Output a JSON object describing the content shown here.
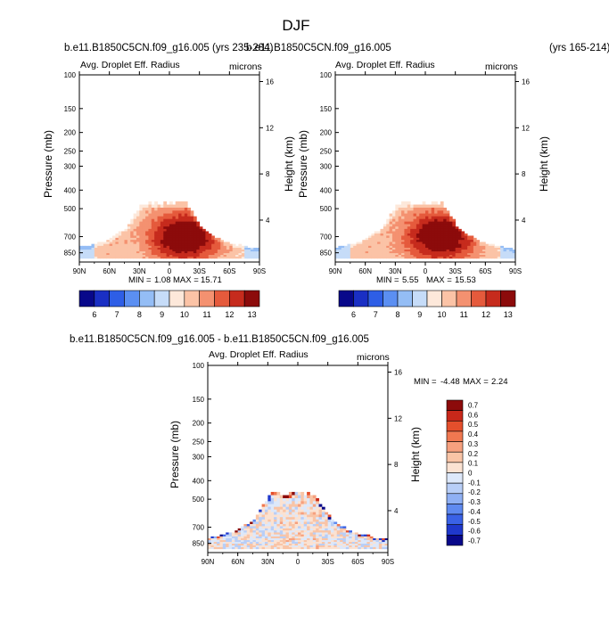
{
  "page": {
    "title": "DJF",
    "case_a_name": "b.e11.B1850C5CN.f09_g16.005 (yrs 235-284)",
    "case_b_name": "b.e11.B1850C5CN.f09_g16.005",
    "case_b_years": "(yrs 165-214)",
    "diff_title": "b.e11.B1850C5CN.f09_g16.005 - b.e11.B1850C5CN.f09_g16.005"
  },
  "colors": {
    "abs_scale": [
      "#08088a",
      "#1a2fc4",
      "#2e5ee6",
      "#5b8ff2",
      "#94bdf5",
      "#c6dcf8",
      "#fde8da",
      "#fbc3a6",
      "#f49170",
      "#e55a3c",
      "#c62b1d",
      "#8c0b0b"
    ],
    "diff_scale": [
      "#08088a",
      "#1f38cc",
      "#3a62e6",
      "#5f8af0",
      "#8fb0f4",
      "#b8cef7",
      "#dde8fa",
      "#fbe2d2",
      "#f9c4a6",
      "#f6a07e",
      "#f07850",
      "#e44f2c",
      "#c8281a",
      "#8c0b0b"
    ]
  },
  "chart_data": [
    {
      "type": "heatmap",
      "id": "case_a",
      "variable": "Avg. Droplet Eff. Radius",
      "units": "microns",
      "xlabel": "",
      "ylabel": "Pressure (mb)",
      "ylabel_right": "Height (km)",
      "x_ticks": [
        "90N",
        "60N",
        "30N",
        "0",
        "30S",
        "60S",
        "90S"
      ],
      "x_range": [
        90,
        -90
      ],
      "y_ticks": [
        100,
        150,
        200,
        250,
        300,
        400,
        500,
        700,
        850
      ],
      "y_range": [
        100,
        950
      ],
      "right_ticks": [
        16,
        12,
        8,
        4
      ],
      "min_label": "MIN =",
      "min_value": "1.08",
      "max_label": "MAX =",
      "max_value": "15.71",
      "colorbar_levels": [
        6,
        7,
        8,
        9,
        10,
        11,
        12,
        13
      ],
      "peak": {
        "lat": -15,
        "pressure": 700,
        "value": 15.7
      }
    },
    {
      "type": "heatmap",
      "id": "case_b",
      "variable": "Avg. Droplet Eff. Radius",
      "units": "microns",
      "xlabel": "",
      "ylabel": "Pressure (mb)",
      "ylabel_right": "Height (km)",
      "x_ticks": [
        "90N",
        "60N",
        "30N",
        "0",
        "30S",
        "60S",
        "90S"
      ],
      "x_range": [
        90,
        -90
      ],
      "y_ticks": [
        100,
        150,
        200,
        250,
        300,
        400,
        500,
        700,
        850
      ],
      "y_range": [
        100,
        950
      ],
      "right_ticks": [
        16,
        12,
        8,
        4
      ],
      "min_label": "MIN =",
      "min_value": "5.55",
      "max_label": "MAX =",
      "max_value": "15.53",
      "colorbar_levels": [
        6,
        7,
        8,
        9,
        10,
        11,
        12,
        13
      ],
      "peak": {
        "lat": -15,
        "pressure": 700,
        "value": 15.5
      }
    },
    {
      "type": "heatmap",
      "id": "difference",
      "variable": "Avg. Droplet Eff. Radius",
      "units": "microns",
      "xlabel": "",
      "ylabel": "Pressure (mb)",
      "ylabel_right": "Height (km)",
      "x_ticks": [
        "90N",
        "60N",
        "30N",
        "0",
        "30S",
        "60S",
        "90S"
      ],
      "x_range": [
        90,
        -90
      ],
      "y_ticks": [
        100,
        150,
        200,
        250,
        300,
        400,
        500,
        700,
        850
      ],
      "y_range": [
        100,
        950
      ],
      "right_ticks": [
        16,
        12,
        8,
        4
      ],
      "min_label": "MIN =",
      "min_value": "-4.48",
      "max_label": "MAX =",
      "max_value": "2.24",
      "colorbar_levels": [
        0.7,
        0.6,
        0.5,
        0.4,
        0.3,
        0.2,
        0.1,
        0,
        -0.1,
        -0.2,
        -0.3,
        -0.4,
        -0.5,
        -0.6,
        -0.7
      ]
    }
  ]
}
